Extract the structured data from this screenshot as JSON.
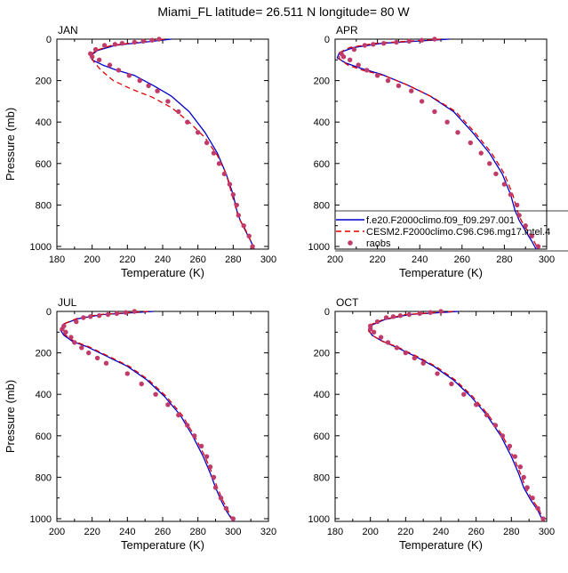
{
  "title": "Miami_FL  latitude= 26.511 N longitude= 80 W",
  "colors": {
    "model1": "#0000cc",
    "model2": "#dd0000",
    "raobs": "#c03a6a"
  },
  "legend": {
    "entries": [
      {
        "label": "f.e20.F2000climo.f09_f09.297.001",
        "style": "solid",
        "color": "#0000cc"
      },
      {
        "label": "CESM2.F2000climo.C96.C96.mg17.intel.4",
        "style": "dashed",
        "color": "#dd0000"
      },
      {
        "label": "raobs",
        "style": "marker",
        "color": "#c03a6a"
      }
    ]
  },
  "chart_data": [
    {
      "type": "line",
      "panel_label": "JAN",
      "xlabel": "Temperature (K)",
      "ylabel": "Pressure (mb)",
      "xlim": [
        180,
        300
      ],
      "xticks": [
        180,
        200,
        220,
        240,
        260,
        280,
        300
      ],
      "ylim": [
        1013,
        0
      ],
      "yticks": [
        0,
        200,
        400,
        600,
        800,
        1000
      ],
      "series": [
        {
          "name": "f.e20.F2000climo.f09_f09.297.001",
          "style": "solid",
          "x": [
            245,
            213,
            203,
            199,
            200,
            206,
            214,
            224,
            235,
            245,
            255,
            264,
            271,
            276,
            280,
            282,
            284,
            287,
            290,
            292
          ],
          "y": [
            0,
            30,
            55,
            80,
            100,
            125,
            150,
            175,
            225,
            275,
            350,
            450,
            550,
            650,
            750,
            825,
            875,
            925,
            975,
            1013
          ]
        },
        {
          "name": "CESM2.F2000climo.C96.C96.mg17.intel.4",
          "style": "dashed",
          "x": [
            241,
            211,
            202,
            199,
            201,
            205,
            212,
            222,
            234,
            245,
            255,
            264,
            271,
            276,
            279,
            281,
            283,
            287,
            290,
            292
          ],
          "y": [
            0,
            30,
            55,
            80,
            110,
            150,
            200,
            240,
            280,
            330,
            400,
            475,
            560,
            650,
            740,
            800,
            860,
            920,
            975,
            1013
          ]
        },
        {
          "name": "raobs",
          "style": "marker",
          "x": [
            238,
            234,
            229,
            224,
            217,
            213,
            207,
            202,
            199,
            200,
            204,
            210,
            215,
            221,
            227,
            232,
            237,
            243,
            249,
            254,
            260,
            265,
            269,
            272,
            275,
            278,
            280,
            282,
            283,
            286,
            289,
            291
          ],
          "y": [
            0,
            5,
            10,
            15,
            20,
            25,
            30,
            50,
            70,
            85,
            100,
            125,
            150,
            175,
            200,
            225,
            250,
            300,
            350,
            400,
            450,
            500,
            550,
            600,
            650,
            700,
            750,
            800,
            850,
            900,
            950,
            1000
          ]
        }
      ]
    },
    {
      "type": "line",
      "panel_label": "APR",
      "xlabel": "Temperature (K)",
      "ylabel": "",
      "xlim": [
        200,
        300
      ],
      "xticks": [
        200,
        220,
        240,
        260,
        280,
        300
      ],
      "ylim": [
        1013,
        0
      ],
      "yticks": [
        0,
        200,
        400,
        600,
        800,
        1000
      ],
      "series": [
        {
          "name": "f.e20.F2000climo.f09_f09.297.001",
          "style": "solid",
          "x": [
            254,
            222,
            209,
            202,
            201,
            205,
            212,
            222,
            234,
            245,
            256,
            265,
            273,
            279,
            283,
            285,
            287,
            290,
            293,
            295
          ],
          "y": [
            0,
            20,
            40,
            65,
            90,
            115,
            140,
            170,
            220,
            275,
            350,
            450,
            550,
            650,
            750,
            825,
            875,
            925,
            975,
            1013
          ]
        },
        {
          "name": "CESM2.F2000climo.C96.C96.mg17.intel.4",
          "style": "dashed",
          "x": [
            250,
            219,
            207,
            202,
            202,
            206,
            213,
            223,
            235,
            246,
            257,
            266,
            274,
            280,
            284,
            286,
            288,
            291,
            294,
            296
          ],
          "y": [
            0,
            20,
            40,
            65,
            95,
            125,
            150,
            175,
            225,
            280,
            350,
            450,
            550,
            650,
            750,
            825,
            875,
            925,
            975,
            1013
          ]
        },
        {
          "name": "raobs",
          "style": "marker",
          "x": [
            247,
            241,
            235,
            229,
            223,
            218,
            214,
            209,
            203,
            204,
            207,
            211,
            215,
            220,
            225,
            230,
            236,
            241,
            247,
            253,
            258,
            264,
            269,
            273,
            276,
            280,
            283,
            286,
            287,
            290,
            293,
            296
          ],
          "y": [
            0,
            5,
            10,
            15,
            20,
            25,
            30,
            50,
            70,
            85,
            100,
            125,
            150,
            175,
            200,
            225,
            250,
            300,
            350,
            400,
            450,
            500,
            550,
            600,
            650,
            700,
            750,
            800,
            850,
            900,
            950,
            1000
          ]
        }
      ]
    },
    {
      "type": "line",
      "panel_label": "JUL",
      "xlabel": "Temperature (K)",
      "ylabel": "Pressure (mb)",
      "xlim": [
        200,
        320
      ],
      "xticks": [
        200,
        220,
        240,
        260,
        280,
        300,
        320
      ],
      "ylim": [
        1013,
        0
      ],
      "yticks": [
        0,
        200,
        400,
        600,
        800,
        1000
      ],
      "series": [
        {
          "name": "f.e20.F2000climo.f09_f09.297.001",
          "style": "solid",
          "x": [
            255,
            226,
            212,
            204,
            202,
            204,
            209,
            217,
            228,
            240,
            251,
            261,
            270,
            277,
            283,
            287,
            290,
            293,
            296,
            300
          ],
          "y": [
            0,
            15,
            35,
            60,
            90,
            115,
            145,
            170,
            215,
            265,
            330,
            410,
            500,
            600,
            700,
            780,
            850,
            910,
            960,
            1013
          ]
        },
        {
          "name": "CESM2.F2000climo.C96.C96.mg17.intel.4",
          "style": "dashed",
          "x": [
            252,
            224,
            211,
            204,
            202,
            205,
            210,
            218,
            229,
            241,
            252,
            262,
            271,
            278,
            284,
            288,
            291,
            294,
            297,
            300
          ],
          "y": [
            0,
            15,
            35,
            60,
            90,
            115,
            145,
            170,
            215,
            265,
            330,
            410,
            500,
            600,
            700,
            780,
            850,
            910,
            960,
            1013
          ]
        },
        {
          "name": "raobs",
          "style": "marker",
          "x": [
            244,
            239,
            234,
            229,
            224,
            219,
            215,
            211,
            204,
            203,
            205,
            208,
            210,
            214,
            218,
            223,
            228,
            240,
            248,
            256,
            263,
            269,
            274,
            278,
            282,
            285,
            287,
            289,
            290,
            293,
            296,
            300
          ],
          "y": [
            0,
            5,
            10,
            15,
            20,
            25,
            30,
            50,
            70,
            85,
            100,
            125,
            150,
            175,
            200,
            225,
            250,
            300,
            350,
            400,
            450,
            500,
            550,
            600,
            650,
            700,
            750,
            800,
            850,
            900,
            950,
            1000
          ]
        }
      ]
    },
    {
      "type": "line",
      "panel_label": "OCT",
      "xlabel": "Temperature (K)",
      "ylabel": "",
      "xlim": [
        180,
        300
      ],
      "xticks": [
        180,
        200,
        220,
        240,
        260,
        280,
        300
      ],
      "ylim": [
        1013,
        0
      ],
      "yticks": [
        0,
        200,
        400,
        600,
        800,
        1000
      ],
      "series": [
        {
          "name": "f.e20.F2000climo.f09_f09.297.001",
          "style": "solid",
          "x": [
            250,
            222,
            208,
            201,
            199,
            201,
            206,
            214,
            225,
            236,
            247,
            257,
            266,
            274,
            280,
            284,
            287,
            291,
            295,
            298
          ],
          "y": [
            0,
            15,
            40,
            65,
            90,
            115,
            140,
            170,
            215,
            265,
            330,
            410,
            500,
            600,
            700,
            780,
            850,
            910,
            960,
            1013
          ]
        },
        {
          "name": "CESM2.F2000climo.C96.C96.mg17.intel.4",
          "style": "dashed",
          "x": [
            247,
            220,
            207,
            200,
            199,
            202,
            207,
            215,
            226,
            237,
            248,
            258,
            267,
            275,
            281,
            285,
            288,
            292,
            296,
            298
          ],
          "y": [
            0,
            15,
            40,
            65,
            95,
            120,
            145,
            170,
            215,
            265,
            330,
            410,
            500,
            600,
            700,
            780,
            850,
            910,
            960,
            1013
          ]
        },
        {
          "name": "raobs",
          "style": "marker",
          "x": [
            240,
            234,
            228,
            222,
            217,
            213,
            209,
            204,
            200,
            200,
            202,
            206,
            210,
            215,
            220,
            225,
            230,
            238,
            246,
            253,
            260,
            266,
            271,
            275,
            279,
            282,
            285,
            287,
            289,
            292,
            295,
            298
          ],
          "y": [
            0,
            5,
            10,
            15,
            20,
            25,
            30,
            50,
            70,
            85,
            100,
            125,
            150,
            175,
            200,
            225,
            250,
            300,
            350,
            400,
            450,
            500,
            550,
            600,
            650,
            700,
            750,
            800,
            850,
            900,
            950,
            1000
          ]
        }
      ]
    }
  ]
}
